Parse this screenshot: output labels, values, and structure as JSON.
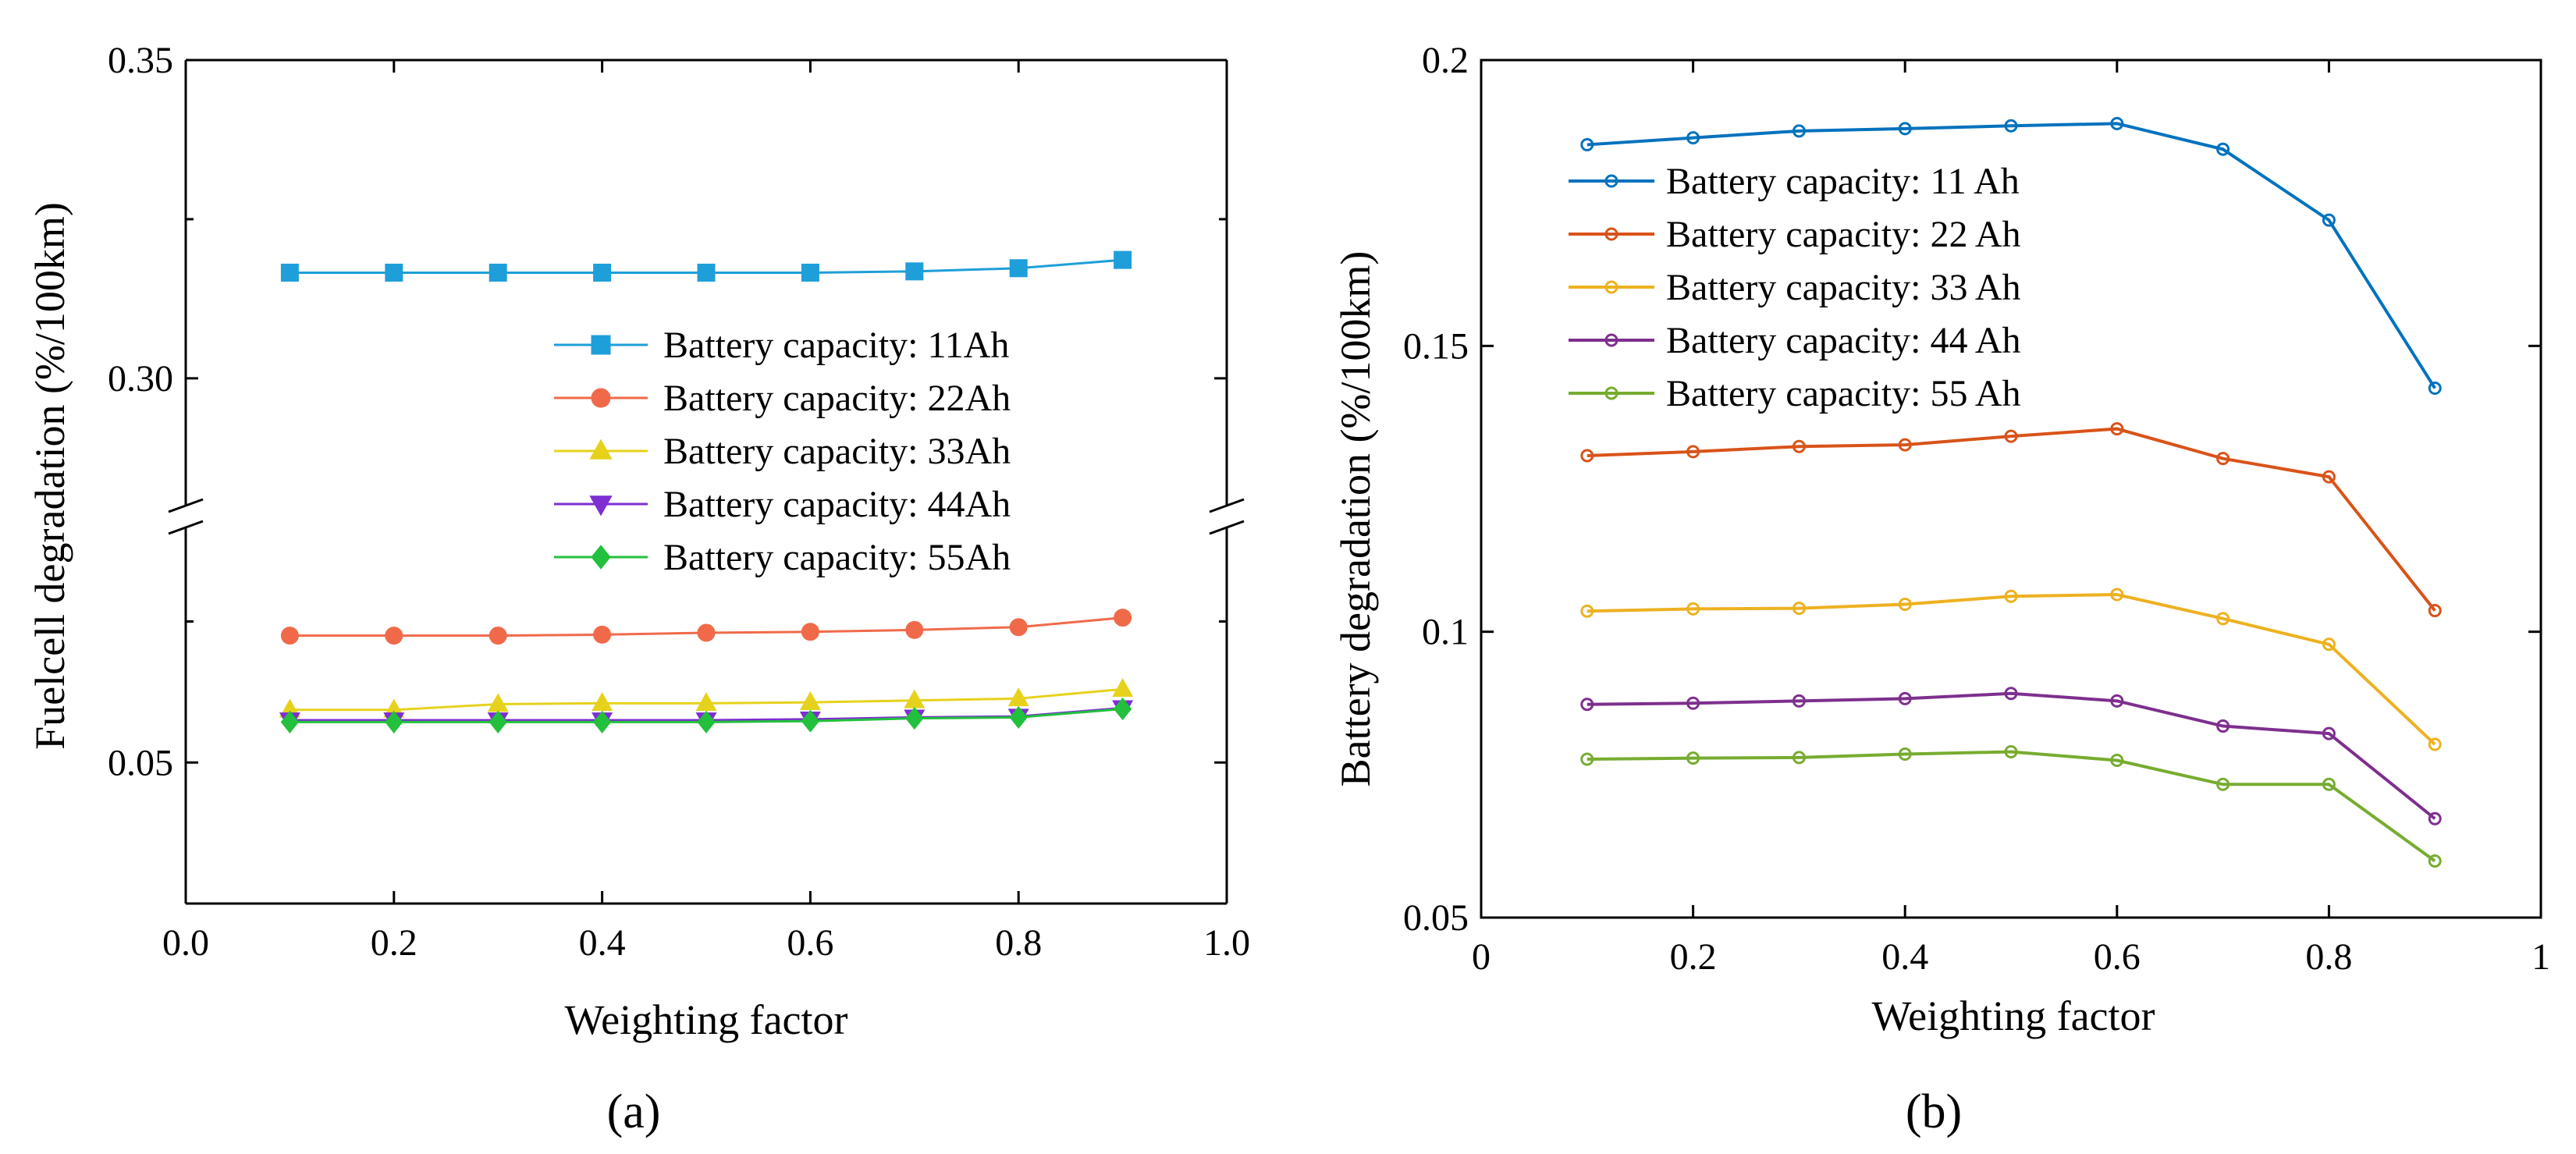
{
  "chart_data": [
    {
      "type": "line",
      "panel_label": "(a)",
      "xlabel": "Weighting factor",
      "ylabel": "Fuelcell degradation (%/100km)",
      "xlim": [
        0.0,
        1.0
      ],
      "x_tick_labels": [
        "0.0",
        "0.2",
        "0.4",
        "0.6",
        "0.8",
        "1.0"
      ],
      "y_axis_break": true,
      "y_ranges": [
        [
          0.035,
          0.075
        ],
        [
          0.28,
          0.35
        ]
      ],
      "y_tick_labels": [
        "0.05",
        "0.30",
        "0.35"
      ],
      "legend_location": "center-right",
      "x": [
        0.1,
        0.2,
        0.3,
        0.4,
        0.5,
        0.6,
        0.7,
        0.8,
        0.9
      ],
      "series": [
        {
          "name": "Battery capacity: 11Ah",
          "color": "#1e9fd9",
          "marker": "square",
          "values": [
            0.3166,
            0.3166,
            0.3166,
            0.3166,
            0.3166,
            0.3166,
            0.3168,
            0.3173,
            0.3186
          ]
        },
        {
          "name": "Battery capacity: 22Ah",
          "color": "#f06a4a",
          "marker": "circle",
          "values": [
            0.0635,
            0.0635,
            0.0635,
            0.0636,
            0.0638,
            0.0639,
            0.0641,
            0.0644,
            0.0654
          ]
        },
        {
          "name": "Battery capacity: 33Ah",
          "color": "#e6d21c",
          "marker": "triangle-up",
          "values": [
            0.0556,
            0.0556,
            0.0562,
            0.0563,
            0.0563,
            0.0564,
            0.0566,
            0.0568,
            0.0578
          ]
        },
        {
          "name": "Battery capacity: 44Ah",
          "color": "#7d2fd2",
          "marker": "triangle-down",
          "values": [
            0.0545,
            0.0545,
            0.0545,
            0.0545,
            0.0545,
            0.0546,
            0.0548,
            0.0549,
            0.0558
          ]
        },
        {
          "name": "Battery capacity: 55Ah",
          "color": "#22c03c",
          "marker": "diamond",
          "values": [
            0.0543,
            0.0543,
            0.0543,
            0.0543,
            0.0543,
            0.0544,
            0.0547,
            0.0548,
            0.0557
          ]
        }
      ]
    },
    {
      "type": "line",
      "panel_label": "(b)",
      "xlabel": "Weighting factor",
      "ylabel": "Battery degradation (%/100km)",
      "xlim": [
        0,
        1
      ],
      "ylim": [
        0.05,
        0.2
      ],
      "x_tick_labels": [
        "0",
        "0.2",
        "0.4",
        "0.6",
        "0.8",
        "1"
      ],
      "y_ticks": [
        0.05,
        0.1,
        0.15,
        0.2
      ],
      "y_tick_labels": [
        "0.05",
        "0.1",
        "0.15",
        "0.2"
      ],
      "legend_location": "top-left",
      "x": [
        0.1,
        0.2,
        0.3,
        0.4,
        0.5,
        0.6,
        0.7,
        0.8,
        0.9
      ],
      "series": [
        {
          "name": "Battery capacity: 11 Ah",
          "color": "#0072bd",
          "marker": "circle",
          "values": [
            0.1852,
            0.1864,
            0.1876,
            0.188,
            0.1885,
            0.1889,
            0.1844,
            0.172,
            0.1426
          ]
        },
        {
          "name": "Battery capacity: 22 Ah",
          "color": "#d95319",
          "marker": "circle",
          "values": [
            0.1308,
            0.1315,
            0.1324,
            0.1327,
            0.1342,
            0.1355,
            0.1303,
            0.1271,
            0.1037
          ]
        },
        {
          "name": "Battery capacity: 33 Ah",
          "color": "#edb120",
          "marker": "circle",
          "values": [
            0.1036,
            0.104,
            0.1041,
            0.1048,
            0.1062,
            0.1065,
            0.1023,
            0.0978,
            0.0803
          ]
        },
        {
          "name": "Battery capacity: 44 Ah",
          "color": "#7e2f8e",
          "marker": "circle",
          "values": [
            0.0873,
            0.0875,
            0.0879,
            0.0883,
            0.0892,
            0.0879,
            0.0835,
            0.0822,
            0.0673
          ]
        },
        {
          "name": "Battery capacity: 55 Ah",
          "color": "#77ac30",
          "marker": "circle",
          "values": [
            0.0777,
            0.0779,
            0.078,
            0.0786,
            0.079,
            0.0775,
            0.0733,
            0.0733,
            0.0599
          ]
        }
      ]
    }
  ]
}
